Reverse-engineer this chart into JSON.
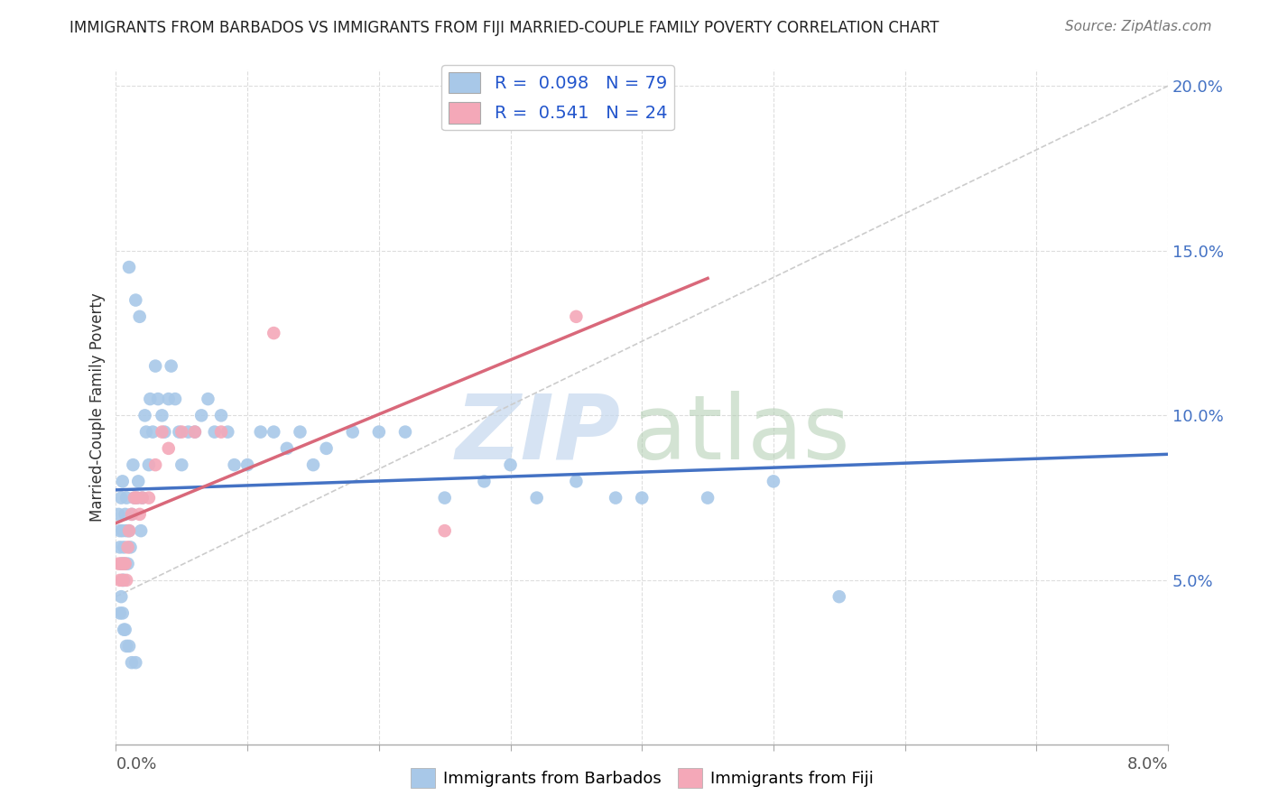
{
  "title": "IMMIGRANTS FROM BARBADOS VS IMMIGRANTS FROM FIJI MARRIED-COUPLE FAMILY POVERTY CORRELATION CHART",
  "source": "Source: ZipAtlas.com",
  "ylabel": "Married-Couple Family Poverty",
  "xmin": 0.0,
  "xmax": 8.0,
  "ymin": 0.0,
  "ymax": 20.5,
  "color_barbados": "#a8c8e8",
  "color_fiji": "#f4a8b8",
  "color_trend_barbados": "#4472c4",
  "color_trend_fiji": "#d9687a",
  "barbados_x": [
    0.02,
    0.03,
    0.03,
    0.04,
    0.04,
    0.05,
    0.05,
    0.05,
    0.05,
    0.06,
    0.06,
    0.07,
    0.07,
    0.08,
    0.08,
    0.09,
    0.1,
    0.1,
    0.11,
    0.12,
    0.13,
    0.14,
    0.15,
    0.16,
    0.17,
    0.18,
    0.19,
    0.2,
    0.22,
    0.23,
    0.25,
    0.26,
    0.28,
    0.3,
    0.32,
    0.35,
    0.37,
    0.4,
    0.42,
    0.45,
    0.48,
    0.5,
    0.55,
    0.6,
    0.65,
    0.7,
    0.75,
    0.8,
    0.85,
    0.9,
    1.0,
    1.1,
    1.2,
    1.3,
    1.4,
    1.5,
    1.6,
    1.8,
    2.0,
    2.2,
    2.5,
    2.8,
    3.0,
    3.2,
    3.5,
    3.8,
    4.0,
    4.5,
    5.0,
    5.5,
    0.03,
    0.04,
    0.05,
    0.06,
    0.07,
    0.08,
    0.1,
    0.12,
    0.15
  ],
  "barbados_y": [
    7.0,
    6.5,
    6.0,
    5.5,
    7.5,
    5.0,
    5.5,
    6.5,
    8.0,
    5.0,
    6.0,
    5.5,
    7.0,
    6.5,
    7.5,
    5.5,
    14.5,
    6.5,
    6.0,
    7.0,
    8.5,
    7.5,
    13.5,
    7.5,
    8.0,
    13.0,
    6.5,
    7.5,
    10.0,
    9.5,
    8.5,
    10.5,
    9.5,
    11.5,
    10.5,
    10.0,
    9.5,
    10.5,
    11.5,
    10.5,
    9.5,
    8.5,
    9.5,
    9.5,
    10.0,
    10.5,
    9.5,
    10.0,
    9.5,
    8.5,
    8.5,
    9.5,
    9.5,
    9.0,
    9.5,
    8.5,
    9.0,
    9.5,
    9.5,
    9.5,
    7.5,
    8.0,
    8.5,
    7.5,
    8.0,
    7.5,
    7.5,
    7.5,
    8.0,
    4.5,
    4.0,
    4.5,
    4.0,
    3.5,
    3.5,
    3.0,
    3.0,
    2.5,
    2.5
  ],
  "fiji_x": [
    0.02,
    0.03,
    0.04,
    0.05,
    0.06,
    0.07,
    0.08,
    0.09,
    0.1,
    0.12,
    0.14,
    0.16,
    0.18,
    0.2,
    0.25,
    0.3,
    0.35,
    0.4,
    0.5,
    0.6,
    0.8,
    1.2,
    2.5,
    3.5
  ],
  "fiji_y": [
    5.5,
    5.0,
    5.5,
    5.0,
    5.5,
    5.5,
    5.0,
    6.0,
    6.5,
    7.0,
    7.5,
    7.5,
    7.0,
    7.5,
    7.5,
    8.5,
    9.5,
    9.0,
    9.5,
    9.5,
    9.5,
    12.5,
    6.5,
    13.0
  ],
  "trend_barbados_x0": 0.0,
  "trend_barbados_x1": 8.0,
  "trend_fiji_x0": 0.0,
  "trend_fiji_x1": 4.5,
  "ref_line_color": "#c8c8d8",
  "watermark_zip_color": "#c8d8ee",
  "watermark_atlas_color": "#b8cce0"
}
